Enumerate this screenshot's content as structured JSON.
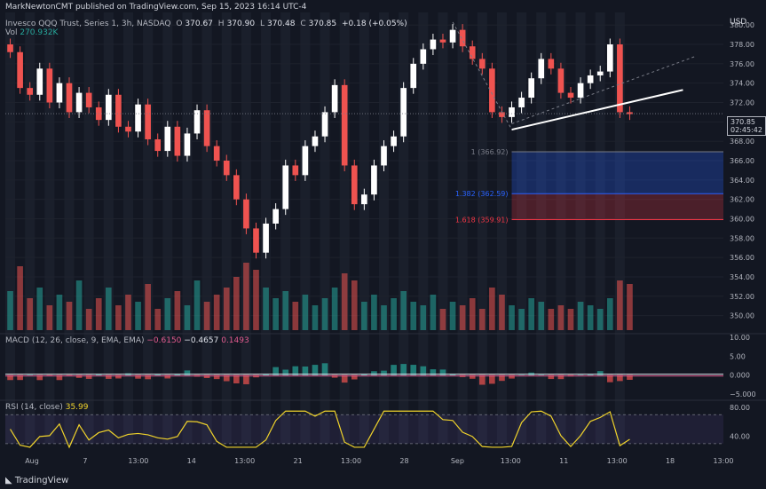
{
  "header": {
    "publisher": "MarkNewtonCMT published on TradingView.com, Sep 15, 2023 16:14 UTC-4",
    "symbol_line": "Invesco QQQ Trust, Series 1, 3h, NASDAQ",
    "o_label": "O",
    "o_value": "370.67",
    "h_label": "H",
    "h_value": "370.90",
    "l_label": "L",
    "l_value": "370.48",
    "c_label": "C",
    "c_value": "370.85",
    "change": "+0.18 (+0.05%)",
    "vol_label": "Vol",
    "vol_value": "270.932K",
    "currency": "USD"
  },
  "last_price": {
    "value": "370.85",
    "countdown": "02:45:42"
  },
  "fib_levels": [
    {
      "label": "1 (366.92)",
      "value": 366.92,
      "color": "#787b86"
    },
    {
      "label": "1.382 (362.59)",
      "value": 362.59,
      "color": "#2962ff"
    },
    {
      "label": "1.618 (359.91)",
      "value": 359.91,
      "color": "#f23645"
    }
  ],
  "macd_panel": {
    "label": "MACD (12, 26, close, 9, EMA, EMA)",
    "v1": "−0.6150",
    "v2": "−0.4657",
    "v3": "0.1493",
    "ticks": [
      "10.00",
      "5.00",
      "0.000",
      "−5.000"
    ]
  },
  "rsi_panel": {
    "label": "RSI (14, close)",
    "value": "35.99",
    "ticks": [
      "80.00",
      "40.00"
    ]
  },
  "footer": {
    "brand": "TradingView"
  },
  "colors": {
    "up": "#26a69a",
    "down": "#ef5350",
    "rsi": "#f0d32b",
    "macd": "#e0e3eb",
    "signal": "#e25b8f"
  },
  "chart_data": {
    "type": "candlestick",
    "title": "Invesco QQQ Trust, Series 1, 3h, NASDAQ",
    "y_ticks": [
      380,
      378,
      376,
      374,
      372,
      370,
      368,
      366,
      364,
      362,
      360,
      358,
      356,
      354,
      352,
      350
    ],
    "ylim": [
      348.5,
      381.3
    ],
    "x_ticks": [
      "Aug",
      "7",
      "13:00",
      "14",
      "13:00",
      "21",
      "13:00",
      "28",
      "Sep",
      "13:00",
      "11",
      "13:00",
      "18",
      "13:00"
    ],
    "close_path": [
      377.2,
      373.5,
      372.8,
      375.5,
      372.0,
      374.0,
      371.0,
      373.0,
      371.5,
      370.2,
      372.8,
      369.5,
      369.0,
      371.8,
      368.2,
      367.0,
      369.5,
      366.5,
      368.8,
      371.2,
      367.5,
      366.0,
      364.5,
      362.0,
      359.0,
      356.5,
      359.5,
      361.0,
      365.5,
      364.5,
      367.5,
      368.5,
      371.0,
      373.8,
      365.5,
      361.5,
      362.5,
      365.5,
      367.5,
      368.5,
      373.5,
      376.0,
      377.5,
      378.5,
      378.2,
      379.5,
      377.8,
      376.5,
      375.5,
      371.0,
      370.5,
      371.5,
      372.5,
      374.5,
      376.5,
      375.5,
      373.0,
      372.5,
      374.0,
      374.8,
      375.2,
      378.0,
      371.0,
      370.8
    ],
    "volume_bars": 64,
    "trendlines": [
      {
        "name": "support",
        "from": [
          "Sep 7",
          369.2
        ],
        "to": [
          "Sep 15",
          373.3
        ]
      }
    ],
    "macd": {
      "macd": -0.615,
      "signal": -0.4657,
      "hist": 0.1493,
      "ylim": [
        -6,
        11
      ]
    },
    "rsi": {
      "value": 35.99,
      "upper": 70,
      "lower": 30
    }
  }
}
